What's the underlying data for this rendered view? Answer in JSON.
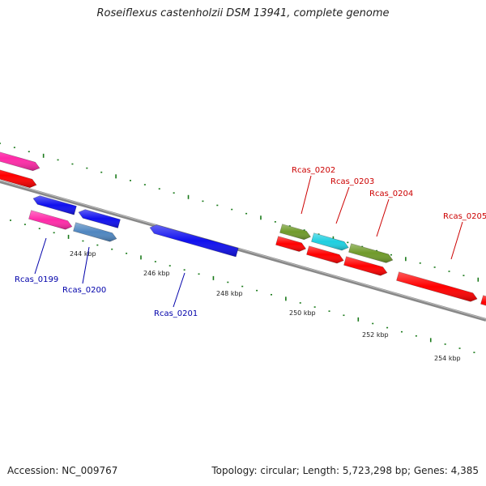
{
  "title": "Roseiflexus castenholzii DSM 13941, complete genome",
  "footer": {
    "accession": "Accession: NC_009767",
    "topology": "Topology: circular; Length: 5,723,298 bp; Genes: 4,385"
  },
  "colors": {
    "backbone": "#888888",
    "tick": "#1a7a1a",
    "forward_label": "#cc0000",
    "reverse_label": "#0000aa",
    "red": "#ff0000",
    "pink": "#ff2aa8",
    "blue": "#1010ee",
    "steel": "#4f86c0",
    "olive": "#6f9a2a",
    "cyan": "#1ecfe0"
  },
  "scale": {
    "labels": [
      "244 kbp",
      "246 kbp",
      "248 kbp",
      "250 kbp",
      "252 kbp",
      "254 kbp"
    ]
  },
  "gene_labels": [
    {
      "text": "Rcas_0199",
      "strand": "reverse"
    },
    {
      "text": "Rcas_0200",
      "strand": "reverse"
    },
    {
      "text": "Rcas_0201",
      "strand": "reverse"
    },
    {
      "text": "Rcas_0202",
      "strand": "forward"
    },
    {
      "text": "Rcas_0203",
      "strand": "forward"
    },
    {
      "text": "Rcas_0204",
      "strand": "forward"
    },
    {
      "text": "Rcas_0205",
      "strand": "forward"
    }
  ]
}
